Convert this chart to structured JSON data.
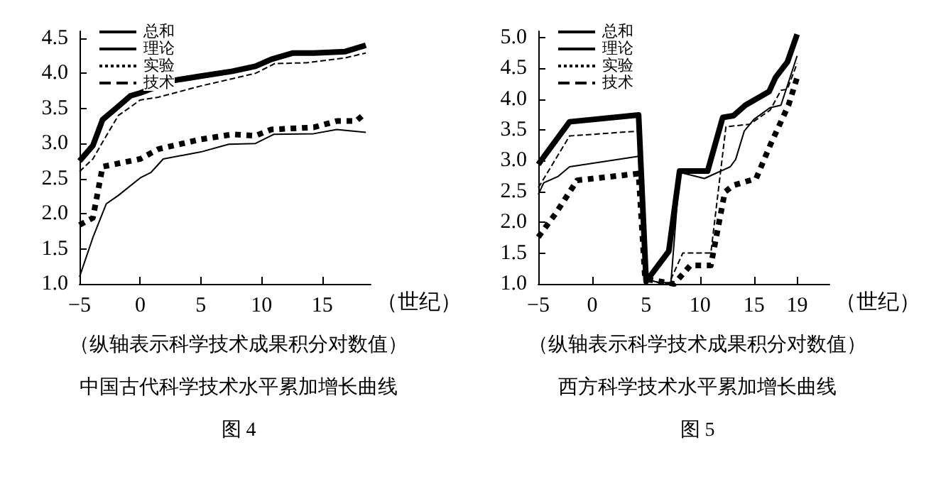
{
  "chart_data": [
    {
      "type": "line",
      "xlabel": "（世纪）",
      "xlim": [
        -5,
        19
      ],
      "xticks": [
        -5,
        0,
        5,
        10,
        15
      ],
      "ylim": [
        1,
        4.6
      ],
      "yticks": [
        {
          "value": 1,
          "label": "1.0"
        },
        {
          "value": 1.5,
          "label": "1.5"
        },
        {
          "value": 2,
          "label": "2.0"
        },
        {
          "value": 2.5,
          "label": "2.5"
        },
        {
          "value": 3,
          "label": "3.0"
        },
        {
          "value": 3.5,
          "label": "3.5"
        },
        {
          "value": 4,
          "label": "4.0"
        },
        {
          "value": 4.5,
          "label": "4.5"
        }
      ],
      "grid": false,
      "legend": "top left",
      "marker": "none",
      "annotations": [
        "（纵轴表示科学技术成果积分对数值）",
        "中国古代科学技术水平累加增长曲线",
        "图 4"
      ],
      "series": [
        {
          "name": "总和",
          "color": "#000000",
          "line_style": "solid",
          "x": [
            -5,
            -3.9,
            -3.1,
            -2,
            -0.8,
            0,
            1.1,
            1.7,
            5,
            7.6,
            9.5,
            10.8,
            12.6,
            14.3,
            16.9,
            18.6
          ],
          "values": [
            2.75,
            2.97,
            3.34,
            3.5,
            3.68,
            3.72,
            3.79,
            3.87,
            3.96,
            4.03,
            4.1,
            4.2,
            4.29,
            4.29,
            4.31,
            4.4
          ]
        },
        {
          "name": "理论",
          "color": "#000000",
          "line_style": "solid",
          "x": [
            -5,
            -3.9,
            -2.8,
            -1.8,
            0,
            0.9,
            1.9,
            5,
            7.3,
            9.5,
            11,
            14.3,
            16.2,
            18.6
          ],
          "values": [
            1.1,
            1.66,
            2.14,
            2.26,
            2.51,
            2.59,
            2.78,
            2.88,
            2.99,
            3.0,
            3.13,
            3.14,
            3.2,
            3.16
          ]
        },
        {
          "name": "实验",
          "color": "#000000",
          "line_style": "dotted",
          "x": [
            -5,
            -3.9,
            -3.1,
            0,
            1.5,
            5,
            7.6,
            9.5,
            10.8,
            14.3,
            16.2,
            17.8,
            18.6
          ],
          "values": [
            1.84,
            1.94,
            2.67,
            2.78,
            2.92,
            3.06,
            3.13,
            3.11,
            3.2,
            3.23,
            3.32,
            3.32,
            3.44
          ]
        },
        {
          "name": "技术",
          "color": "#000000",
          "line_style": "dashed",
          "x": [
            -5,
            -3.9,
            -3.1,
            -1.8,
            -0.8,
            0,
            1.5,
            5,
            9.5,
            11.1,
            13.7,
            16.9,
            18.6
          ],
          "values": [
            2.6,
            2.78,
            3.02,
            3.4,
            3.52,
            3.62,
            3.66,
            3.82,
            4.0,
            4.14,
            4.15,
            4.22,
            4.29
          ]
        }
      ]
    },
    {
      "type": "line",
      "xlabel": "（世纪）",
      "xlim": [
        -5,
        22
      ],
      "xticks": [
        -5,
        0,
        5,
        10,
        15,
        19
      ],
      "ylim": [
        1,
        5.1
      ],
      "yticks": [
        {
          "value": 1,
          "label": "1.0"
        },
        {
          "value": 1.5,
          "label": "1.5"
        },
        {
          "value": 2,
          "label": "2.0"
        },
        {
          "value": 2.5,
          "label": "2.5"
        },
        {
          "value": 3,
          "label": "3.0"
        },
        {
          "value": 3.5,
          "label": "3.5"
        },
        {
          "value": 4,
          "label": "4.0"
        },
        {
          "value": 4.5,
          "label": "4.5"
        },
        {
          "value": 5,
          "label": "5.0"
        }
      ],
      "grid": false,
      "legend": "top left",
      "marker": "none",
      "annotations": [
        "（纵轴表示科学技术成果积分对数值）",
        "西方科学技术水平累加增长曲线",
        "图 5"
      ],
      "series": [
        {
          "name": "总和",
          "color": "#000000",
          "line_style": "solid",
          "x": [
            -5,
            -2.1,
            4.3,
            5,
            7.1,
            8.1,
            10.7,
            12.1,
            13.1,
            14.2,
            16.4,
            17,
            18.1,
            19
          ],
          "values": [
            2.94,
            3.63,
            3.74,
            1.04,
            1.53,
            2.83,
            2.83,
            3.7,
            3.73,
            3.9,
            4.12,
            4.35,
            4.6,
            5.05
          ]
        },
        {
          "name": "理论",
          "color": "#000000",
          "line_style": "solid",
          "x": [
            -5,
            -4.5,
            -3.2,
            -2.1,
            4.3,
            4.9,
            6.2,
            7.3,
            8.1,
            10.4,
            12.8,
            13.3,
            14.1,
            15,
            16.5,
            17.5,
            19
          ],
          "values": [
            2.45,
            2.64,
            2.74,
            2.9,
            3.07,
            1.08,
            1.02,
            1.02,
            2.81,
            2.71,
            2.9,
            3.02,
            3.48,
            3.67,
            3.86,
            3.9,
            4.7
          ]
        },
        {
          "name": "实验",
          "color": "#000000",
          "line_style": "dotted",
          "x": [
            -5,
            -3.4,
            -1.4,
            4.3,
            4.9,
            7.6,
            9.1,
            11,
            12.3,
            13.1,
            15.2,
            16.5,
            18.2,
            19
          ],
          "values": [
            1.76,
            2.14,
            2.68,
            2.79,
            1.08,
            1.0,
            1.3,
            1.3,
            2.49,
            2.6,
            2.71,
            3.25,
            3.9,
            4.35
          ]
        },
        {
          "name": "技术",
          "color": "#000000",
          "line_style": "dashed",
          "x": [
            -5,
            -2.1,
            4.3,
            4.9,
            6.2,
            7.1,
            8.4,
            11,
            12.4,
            14.6,
            16.5,
            17.5,
            18.1,
            19
          ],
          "values": [
            2.56,
            3.4,
            3.48,
            1.08,
            1.02,
            1.0,
            1.5,
            1.5,
            3.55,
            3.59,
            3.82,
            4.14,
            4.16,
            4.58
          ]
        }
      ]
    }
  ]
}
